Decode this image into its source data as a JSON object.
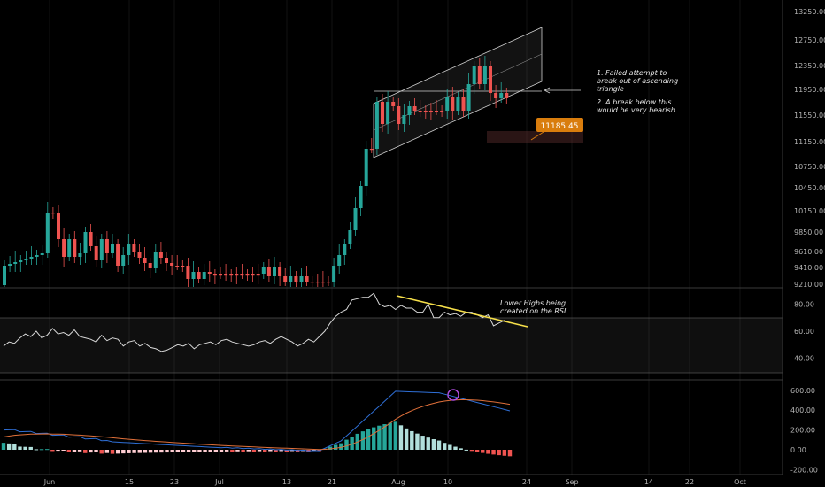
{
  "chart_data": [
    {
      "type": "candlestick",
      "pane": "price",
      "y_ticks": [
        "13250.00",
        "12750.00",
        "12350.00",
        "11950.00",
        "11550.00",
        "11150.00",
        "10750.00",
        "10450.00",
        "10150.00",
        "9850.00",
        "9610.00",
        "9410.00",
        "9210.00"
      ],
      "annotations_text": [
        "1. Failed attempt to break out of ascending triangle",
        "2. A break below this would be very bearish"
      ],
      "label_value": "11185.45"
    },
    {
      "type": "line",
      "pane": "rsi",
      "y_ticks": [
        "80.00",
        "60.00",
        "40.00"
      ],
      "bands": [
        70,
        30
      ],
      "values": [
        49,
        52,
        51,
        55,
        58,
        56,
        60,
        55,
        57,
        62,
        58,
        59,
        57,
        61,
        56,
        55,
        54,
        52,
        57,
        53,
        55,
        54,
        49,
        52,
        53,
        49,
        51,
        48,
        47,
        45,
        46,
        48,
        50,
        49,
        51,
        47,
        50,
        51,
        52,
        50,
        53,
        54,
        52,
        51,
        50,
        49,
        50,
        52,
        53,
        51,
        54,
        56,
        54,
        52,
        49,
        51,
        54,
        52,
        56,
        60,
        66,
        71,
        74,
        76,
        83,
        84,
        85,
        85,
        88,
        80,
        78,
        79,
        76,
        79,
        77,
        77,
        74,
        74,
        80,
        70,
        70,
        74,
        72,
        73,
        71,
        74,
        74,
        72,
        70,
        72,
        64,
        66,
        68,
        66
      ],
      "annotation": "Lower Highs being created on the RSI"
    },
    {
      "type": "line",
      "pane": "macd",
      "y_ticks": [
        "600.00",
        "400.00",
        "200.00",
        "0.00",
        "-200.00"
      ],
      "series": [
        {
          "name": "MACD",
          "color": "#2f6fd6"
        },
        {
          "name": "Signal",
          "color": "#e0703a"
        },
        {
          "name": "Histogram"
        }
      ]
    }
  ],
  "time_axis": [
    "Jun",
    "15",
    "23",
    "Jul",
    "13",
    "21",
    "Aug",
    "10",
    "24",
    "Sep",
    "14",
    "22",
    "Oct"
  ],
  "annotations": {
    "triangle": [
      "1. Failed attempt to",
      "break out of ascending",
      "triangle",
      "2. A break below this",
      "would be very bearish"
    ],
    "rsi": [
      "Lower Highs being",
      "created on the RSI"
    ],
    "price_label": "11185.45"
  },
  "colors": {
    "up": "#26a69a",
    "down": "#ef5350",
    "rsi": "#d8d8d8",
    "trend": "#f7e04a",
    "label": "#d97d0d"
  }
}
